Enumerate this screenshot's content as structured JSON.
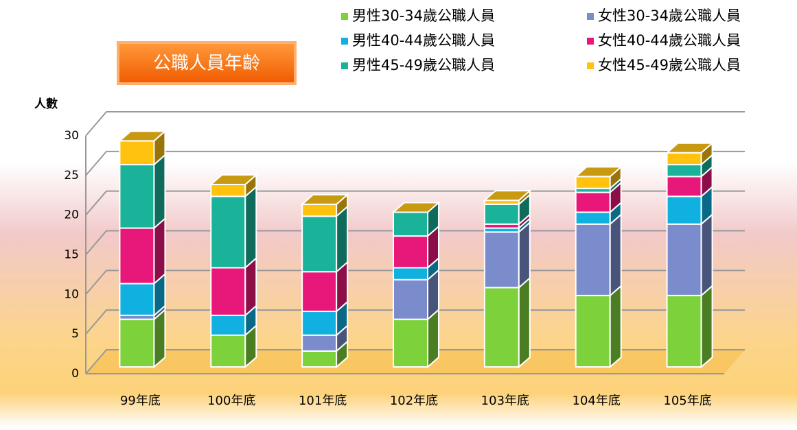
{
  "chart_data": {
    "type": "bar3d_stacked",
    "title": "公職人員年齡",
    "y_label": "人數",
    "categories": [
      "99年底",
      "100年底",
      "101年底",
      "102年底",
      "103年底",
      "104年底",
      "105年底"
    ],
    "series": [
      {
        "name": "男性30-34歲公職人員",
        "color": "#7dd13a",
        "values": [
          6,
          4,
          2,
          6,
          10,
          9,
          9
        ]
      },
      {
        "name": "男性40-44歲公職人員",
        "color": "#10b0e0",
        "values": [
          4,
          2.5,
          3,
          1.5,
          0.5,
          1.5,
          3.5
        ]
      },
      {
        "name": "男性45-49歲公職人員",
        "color": "#1ab39a",
        "values": [
          8,
          9,
          7,
          3,
          2.5,
          0.5,
          1.5
        ]
      },
      {
        "name": "女性30-34歲公職人員",
        "color": "#7b8ccc",
        "values": [
          0.5,
          0,
          2,
          5,
          7,
          9,
          9
        ]
      },
      {
        "name": "女性40-44歲公職人員",
        "color": "#e8187a",
        "values": [
          7,
          6,
          5,
          4,
          0.5,
          2.5,
          2.5
        ]
      },
      {
        "name": "女性45-49歲公職人員",
        "color": "#ffc20e",
        "values": [
          3,
          1.5,
          1.5,
          0,
          0.5,
          1.5,
          1.5
        ]
      }
    ],
    "stack_order": [
      0,
      3,
      1,
      4,
      2,
      5
    ],
    "ylim": [
      0,
      30
    ],
    "yticks": [
      0,
      5,
      10,
      15,
      20,
      25,
      30
    ],
    "grid": true
  }
}
